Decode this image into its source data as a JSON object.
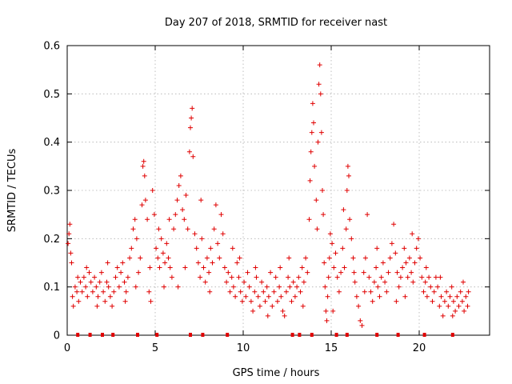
{
  "chart_data": {
    "type": "scatter",
    "title": "Day 207 of 2018, SRMTID for receiver nast",
    "xlabel": "GPS time / hours",
    "ylabel": "SRMTID / TECUs",
    "xlim": [
      0,
      24
    ],
    "ylim": [
      0,
      0.6
    ],
    "xticks": [
      0,
      5,
      10,
      15,
      20
    ],
    "xtick_labels": [
      "0",
      "5",
      "10",
      "15",
      "20"
    ],
    "yticks": [
      0,
      0.1,
      0.2,
      0.3,
      0.4,
      0.5,
      0.6
    ],
    "ytick_labels": [
      "0",
      "0.1",
      "0.2",
      "0.3",
      "0.4",
      "0.5",
      "0.6"
    ],
    "grid": true,
    "marker": "+",
    "color": "#e00000",
    "series": [
      {
        "name": "SRMTID",
        "points": [
          [
            0.05,
            0.19
          ],
          [
            0.1,
            0.21
          ],
          [
            0.15,
            0.23
          ],
          [
            0.2,
            0.17
          ],
          [
            0.25,
            0.15
          ],
          [
            0.3,
            0.08
          ],
          [
            0.35,
            0.06
          ],
          [
            0.45,
            0.1
          ],
          [
            0.55,
            0.09
          ],
          [
            0.65,
            0.07
          ],
          [
            0.75,
            0.11
          ],
          [
            0.85,
            0.09
          ],
          [
            0.95,
            0.12
          ],
          [
            1.05,
            0.1
          ],
          [
            1.15,
            0.08
          ],
          [
            1.25,
            0.13
          ],
          [
            1.35,
            0.11
          ],
          [
            1.45,
            0.09
          ],
          [
            1.55,
            0.12
          ],
          [
            1.65,
            0.1
          ],
          [
            1.75,
            0.08
          ],
          [
            1.85,
            0.11
          ],
          [
            1.95,
            0.13
          ],
          [
            2.05,
            0.09
          ],
          [
            2.15,
            0.07
          ],
          [
            2.25,
            0.11
          ],
          [
            2.35,
            0.1
          ],
          [
            2.45,
            0.08
          ],
          [
            2.55,
            0.06
          ],
          [
            2.65,
            0.09
          ],
          [
            2.75,
            0.12
          ],
          [
            2.85,
            0.14
          ],
          [
            2.95,
            0.1
          ],
          [
            3.05,
            0.13
          ],
          [
            3.15,
            0.15
          ],
          [
            3.25,
            0.11
          ],
          [
            3.35,
            0.09
          ],
          [
            3.45,
            0.12
          ],
          [
            3.55,
            0.16
          ],
          [
            3.65,
            0.18
          ],
          [
            3.75,
            0.22
          ],
          [
            3.85,
            0.24
          ],
          [
            3.95,
            0.2
          ],
          [
            4.05,
            0.13
          ],
          [
            4.15,
            0.16
          ],
          [
            4.25,
            0.27
          ],
          [
            4.3,
            0.35
          ],
          [
            4.35,
            0.36
          ],
          [
            4.4,
            0.33
          ],
          [
            4.45,
            0.28
          ],
          [
            4.55,
            0.24
          ],
          [
            4.65,
            0.09
          ],
          [
            4.75,
            0.07
          ],
          [
            4.85,
            0.3
          ],
          [
            4.95,
            0.25
          ],
          [
            5.05,
            0.18
          ],
          [
            5.15,
            0.16
          ],
          [
            5.25,
            0.14
          ],
          [
            5.35,
            0.2
          ],
          [
            5.45,
            0.17
          ],
          [
            5.55,
            0.15
          ],
          [
            5.65,
            0.19
          ],
          [
            5.75,
            0.16
          ],
          [
            5.85,
            0.14
          ],
          [
            5.95,
            0.12
          ],
          [
            6.05,
            0.22
          ],
          [
            6.15,
            0.25
          ],
          [
            6.25,
            0.28
          ],
          [
            6.35,
            0.31
          ],
          [
            6.45,
            0.33
          ],
          [
            6.55,
            0.26
          ],
          [
            6.65,
            0.24
          ],
          [
            6.75,
            0.29
          ],
          [
            6.85,
            0.22
          ],
          [
            6.95,
            0.38
          ],
          [
            7.0,
            0.43
          ],
          [
            7.05,
            0.45
          ],
          [
            7.1,
            0.47
          ],
          [
            7.15,
            0.37
          ],
          [
            7.25,
            0.21
          ],
          [
            7.35,
            0.18
          ],
          [
            7.45,
            0.15
          ],
          [
            7.55,
            0.12
          ],
          [
            7.65,
            0.2
          ],
          [
            7.75,
            0.14
          ],
          [
            7.85,
            0.11
          ],
          [
            7.95,
            0.16
          ],
          [
            8.05,
            0.13
          ],
          [
            8.15,
            0.18
          ],
          [
            8.25,
            0.15
          ],
          [
            8.35,
            0.22
          ],
          [
            8.45,
            0.27
          ],
          [
            8.55,
            0.19
          ],
          [
            8.65,
            0.16
          ],
          [
            8.75,
            0.25
          ],
          [
            8.85,
            0.21
          ],
          [
            8.95,
            0.14
          ],
          [
            9.05,
            0.11
          ],
          [
            9.15,
            0.13
          ],
          [
            9.25,
            0.09
          ],
          [
            9.35,
            0.12
          ],
          [
            9.45,
            0.1
          ],
          [
            9.55,
            0.08
          ],
          [
            9.65,
            0.15
          ],
          [
            9.75,
            0.12
          ],
          [
            9.85,
            0.09
          ],
          [
            9.95,
            0.07
          ],
          [
            10.05,
            0.11
          ],
          [
            10.15,
            0.08
          ],
          [
            10.25,
            0.13
          ],
          [
            10.35,
            0.1
          ],
          [
            10.45,
            0.07
          ],
          [
            10.55,
            0.05
          ],
          [
            10.65,
            0.09
          ],
          [
            10.75,
            0.12
          ],
          [
            10.85,
            0.08
          ],
          [
            10.95,
            0.06
          ],
          [
            11.05,
            0.11
          ],
          [
            11.15,
            0.09
          ],
          [
            11.25,
            0.07
          ],
          [
            11.35,
            0.1
          ],
          [
            11.45,
            0.08
          ],
          [
            11.55,
            0.13
          ],
          [
            11.65,
            0.06
          ],
          [
            11.75,
            0.09
          ],
          [
            11.85,
            0.12
          ],
          [
            11.95,
            0.07
          ],
          [
            12.05,
            0.1
          ],
          [
            12.15,
            0.08
          ],
          [
            12.25,
            0.05
          ],
          [
            12.35,
            0.04
          ],
          [
            12.45,
            0.09
          ],
          [
            12.55,
            0.12
          ],
          [
            12.65,
            0.1
          ],
          [
            12.75,
            0.07
          ],
          [
            12.85,
            0.11
          ],
          [
            12.95,
            0.08
          ],
          [
            13.05,
            0.1
          ],
          [
            13.15,
            0.12
          ],
          [
            13.25,
            0.09
          ],
          [
            13.35,
            0.14
          ],
          [
            13.45,
            0.11
          ],
          [
            13.55,
            0.16
          ],
          [
            13.65,
            0.13
          ],
          [
            13.75,
            0.24
          ],
          [
            13.8,
            0.32
          ],
          [
            13.85,
            0.38
          ],
          [
            13.9,
            0.42
          ],
          [
            13.95,
            0.48
          ],
          [
            14.0,
            0.44
          ],
          [
            14.05,
            0.35
          ],
          [
            14.15,
            0.28
          ],
          [
            14.25,
            0.4
          ],
          [
            14.3,
            0.52
          ],
          [
            14.35,
            0.56
          ],
          [
            14.4,
            0.5
          ],
          [
            14.45,
            0.42
          ],
          [
            14.5,
            0.3
          ],
          [
            14.55,
            0.25
          ],
          [
            14.6,
            0.15
          ],
          [
            14.65,
            0.1
          ],
          [
            14.7,
            0.05
          ],
          [
            14.75,
            0.03
          ],
          [
            14.8,
            0.08
          ],
          [
            14.85,
            0.12
          ],
          [
            14.9,
            0.16
          ],
          [
            14.95,
            0.21
          ],
          [
            15.05,
            0.19
          ],
          [
            15.15,
            0.14
          ],
          [
            15.25,
            0.17
          ],
          [
            15.35,
            0.12
          ],
          [
            15.45,
            0.09
          ],
          [
            15.55,
            0.13
          ],
          [
            15.65,
            0.18
          ],
          [
            15.75,
            0.14
          ],
          [
            15.85,
            0.22
          ],
          [
            15.9,
            0.3
          ],
          [
            15.95,
            0.35
          ],
          [
            16.0,
            0.33
          ],
          [
            16.05,
            0.24
          ],
          [
            16.15,
            0.2
          ],
          [
            16.25,
            0.16
          ],
          [
            16.35,
            0.11
          ],
          [
            16.45,
            0.08
          ],
          [
            16.55,
            0.06
          ],
          [
            16.65,
            0.03
          ],
          [
            16.75,
            0.02
          ],
          [
            16.85,
            0.13
          ],
          [
            16.95,
            0.16
          ],
          [
            17.05,
            0.25
          ],
          [
            17.15,
            0.12
          ],
          [
            17.25,
            0.09
          ],
          [
            17.35,
            0.07
          ],
          [
            17.45,
            0.11
          ],
          [
            17.55,
            0.14
          ],
          [
            17.65,
            0.1
          ],
          [
            17.75,
            0.08
          ],
          [
            17.85,
            0.12
          ],
          [
            17.95,
            0.15
          ],
          [
            18.05,
            0.11
          ],
          [
            18.15,
            0.09
          ],
          [
            18.25,
            0.13
          ],
          [
            18.35,
            0.16
          ],
          [
            18.45,
            0.19
          ],
          [
            18.55,
            0.23
          ],
          [
            18.65,
            0.17
          ],
          [
            18.75,
            0.13
          ],
          [
            18.85,
            0.1
          ],
          [
            18.95,
            0.12
          ],
          [
            19.05,
            0.14
          ],
          [
            19.15,
            0.18
          ],
          [
            19.25,
            0.15
          ],
          [
            19.35,
            0.12
          ],
          [
            19.45,
            0.16
          ],
          [
            19.55,
            0.13
          ],
          [
            19.65,
            0.11
          ],
          [
            19.75,
            0.15
          ],
          [
            19.85,
            0.18
          ],
          [
            19.95,
            0.2
          ],
          [
            20.05,
            0.16
          ],
          [
            20.15,
            0.12
          ],
          [
            20.25,
            0.09
          ],
          [
            20.35,
            0.11
          ],
          [
            20.45,
            0.08
          ],
          [
            20.55,
            0.12
          ],
          [
            20.65,
            0.1
          ],
          [
            20.75,
            0.07
          ],
          [
            20.85,
            0.09
          ],
          [
            20.95,
            0.12
          ],
          [
            21.05,
            0.1
          ],
          [
            21.15,
            0.06
          ],
          [
            21.25,
            0.08
          ],
          [
            21.35,
            0.04
          ],
          [
            21.45,
            0.07
          ],
          [
            21.55,
            0.09
          ],
          [
            21.65,
            0.06
          ],
          [
            21.75,
            0.08
          ],
          [
            21.85,
            0.1
          ],
          [
            21.95,
            0.07
          ],
          [
            22.05,
            0.05
          ],
          [
            22.15,
            0.08
          ],
          [
            22.25,
            0.06
          ],
          [
            22.35,
            0.09
          ],
          [
            22.45,
            0.07
          ],
          [
            22.55,
            0.05
          ],
          [
            22.65,
            0.08
          ],
          [
            22.75,
            0.06
          ],
          [
            22.8,
            0.09
          ],
          [
            0.6,
            0.12
          ],
          [
            1.1,
            0.14
          ],
          [
            1.7,
            0.06
          ],
          [
            2.3,
            0.15
          ],
          [
            3.3,
            0.07
          ],
          [
            4.7,
            0.14
          ],
          [
            5.2,
            0.22
          ],
          [
            5.8,
            0.24
          ],
          [
            6.3,
            0.1
          ],
          [
            7.6,
            0.28
          ],
          [
            8.1,
            0.09
          ],
          [
            9.4,
            0.18
          ],
          [
            10.7,
            0.14
          ],
          [
            11.4,
            0.04
          ],
          [
            12.6,
            0.16
          ],
          [
            13.4,
            0.06
          ],
          [
            15.1,
            0.05
          ],
          [
            15.7,
            0.26
          ],
          [
            16.3,
            0.13
          ],
          [
            17.6,
            0.18
          ],
          [
            18.7,
            0.07
          ],
          [
            19.6,
            0.21
          ],
          [
            20.4,
            0.14
          ],
          [
            21.2,
            0.12
          ],
          [
            21.9,
            0.04
          ],
          [
            22.5,
            0.11
          ],
          [
            3.9,
            0.1
          ],
          [
            5.5,
            0.1
          ],
          [
            6.7,
            0.14
          ],
          [
            9.8,
            0.16
          ],
          [
            12.1,
            0.14
          ],
          [
            14.2,
            0.22
          ],
          [
            16.9,
            0.09
          ],
          [
            19.2,
            0.08
          ]
        ]
      }
    ],
    "gap_markers_x": [
      0.6,
      1.3,
      2.0,
      2.6,
      4.0,
      5.1,
      7.0,
      7.7,
      9.1,
      12.8,
      13.2,
      13.9,
      15.3,
      15.9,
      17.6,
      18.8,
      20.3,
      21.9
    ]
  }
}
